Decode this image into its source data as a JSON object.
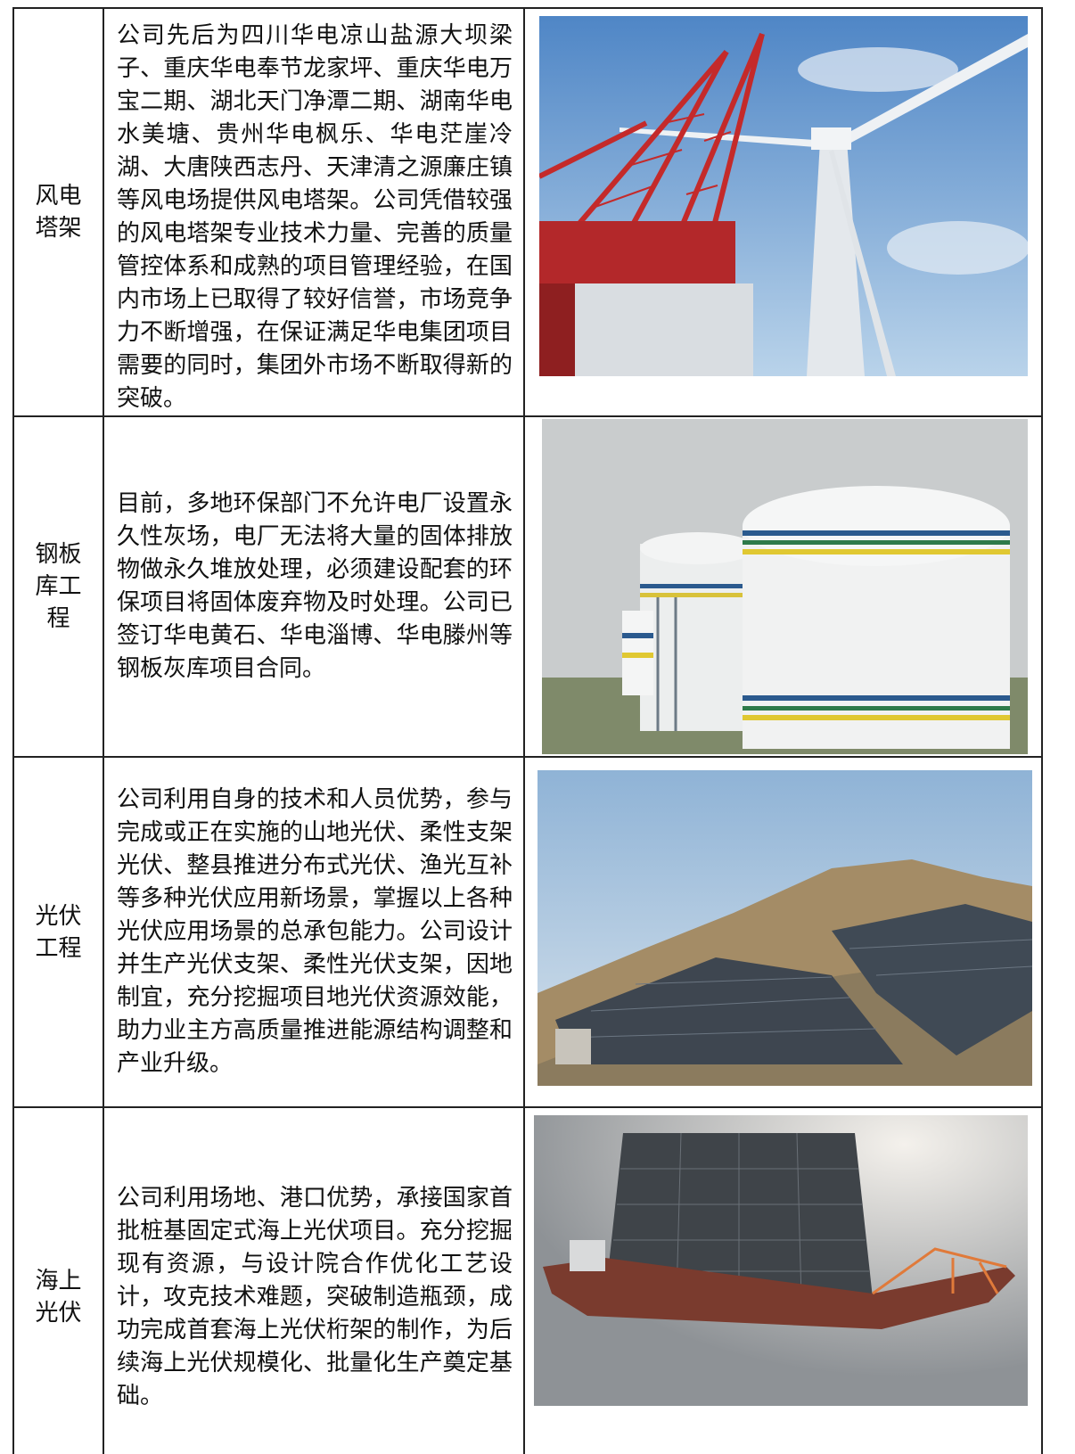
{
  "table": {
    "rows": [
      {
        "label": "风电塔架",
        "text": "公司先后为四川华电凉山盐源大坝梁子、重庆华电奉节龙家坪、重庆华电万宝二期、湖北天门净潭二期、湖南华电水美塘、贵州华电枫乐、华电茫崖冷湖、大唐陕西志丹、天津清之源廉庄镇等风电场提供风电塔架。公司凭借较强的风电塔架专业技术力量、完善的质量管控体系和成熟的项目管理经验，在国内市场上已取得了较好信誉，市场竞争力不断增强，在保证满足华电集团项目需要的同时，集团外市场不断取得新的突破。"
      },
      {
        "label": "钢板库工程",
        "text": "目前，多地环保部门不允许电厂设置永久性灰场，电厂无法将大量的固体排放物做永久堆放处理，必须建设配套的环保项目将固体废弃物及时处理。公司已签订华电黄石、华电淄博、华电滕州等钢板灰库项目合同。"
      },
      {
        "label": "光伏工程",
        "text": "公司利用自身的技术和人员优势，参与完成或正在实施的山地光伏、柔性支架光伏、整县推进分布式光伏、渔光互补等多种光伏应用新场景，掌握以上各种光伏应用场景的总承包能力。公司设计并生产光伏支架、柔性光伏支架，因地制宜，充分挖掘项目地光伏资源效能，助力业主方高质量推进能源结构调整和产业升级。"
      },
      {
        "label": "海上光伏",
        "text": "公司利用场地、港口优势，承接国家首批桩基固定式海上光伏项目。充分挖掘现有资源，与设计院合作优化工艺设计，攻克技术难题，突破制造瓶颈，成功完成首套海上光伏桁架的制作，为后续海上光伏规模化、批量化生产奠定基础。"
      }
    ]
  }
}
